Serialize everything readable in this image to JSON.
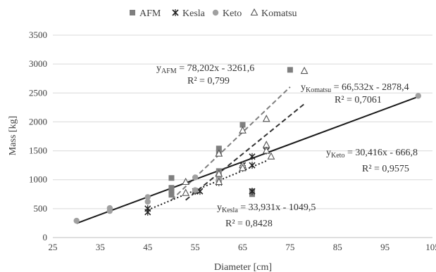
{
  "chart_data": {
    "type": "scatter",
    "xlabel": "Diameter [cm]",
    "ylabel": "Mass [kg]",
    "xlim": [
      25,
      105
    ],
    "ylim": [
      0,
      3500
    ],
    "xticks": [
      25,
      35,
      45,
      55,
      65,
      75,
      85,
      95,
      105
    ],
    "yticks": [
      0,
      500,
      1000,
      1500,
      2000,
      2500,
      3000,
      3500
    ],
    "grid": "horizontal",
    "legend_position": "top",
    "series": [
      {
        "name": "AFM",
        "marker": "square",
        "color": "#7f7f7f",
        "points": [
          [
            50,
            1030
          ],
          [
            50,
            860
          ],
          [
            50,
            800
          ],
          [
            50,
            740
          ],
          [
            55,
            800
          ],
          [
            60,
            1540
          ],
          [
            60,
            1470
          ],
          [
            60,
            1150
          ],
          [
            60,
            1100
          ],
          [
            60,
            1000
          ],
          [
            67,
            800
          ],
          [
            67,
            750
          ],
          [
            65,
            1950
          ],
          [
            75,
            2900
          ]
        ],
        "trendline": {
          "slope": 78.202,
          "intercept": -3261.6,
          "x_range": [
            50,
            75
          ],
          "style": "dashed",
          "color": "#7f7f7f"
        },
        "equation": {
          "y": "y",
          "sub": "AFM",
          "rest": " = 78,202x - 3261,6",
          "r2": "R² = 0,799"
        }
      },
      {
        "name": "Kesla",
        "marker": "star",
        "color": "#222222",
        "points": [
          [
            45,
            500
          ],
          [
            45,
            440
          ],
          [
            55,
            800
          ],
          [
            56,
            800
          ],
          [
            60,
            950
          ],
          [
            65,
            1250
          ],
          [
            65,
            1200
          ],
          [
            67,
            1400
          ],
          [
            67,
            1250
          ],
          [
            67,
            800
          ],
          [
            70,
            1500
          ]
        ],
        "trendline": {
          "slope": 33.931,
          "intercept": -1049.5,
          "x_range": [
            45,
            70
          ],
          "style": "dotted",
          "color": "#222222"
        },
        "equation": {
          "y": "y",
          "sub": "Kesla",
          "rest": " = 33,931x - 1049,5",
          "r2": "R² = 0,8428"
        }
      },
      {
        "name": "Keto",
        "marker": "circle",
        "color": "#a0a0a0",
        "points": [
          [
            30,
            290
          ],
          [
            37,
            510
          ],
          [
            37,
            460
          ],
          [
            45,
            700
          ],
          [
            45,
            620
          ],
          [
            55,
            1040
          ],
          [
            55,
            820
          ],
          [
            60,
            1100
          ],
          [
            60,
            1000
          ],
          [
            102,
            2450
          ]
        ],
        "trendline": {
          "slope": 30.416,
          "intercept": -666.8,
          "x_range": [
            30,
            102
          ],
          "style": "solid",
          "color": "#1a1a1a"
        },
        "equation": {
          "y": "y",
          "sub": "Keto",
          "rest": " = 30,416x - 666,8",
          "r2": "R² = 0,9575"
        }
      },
      {
        "name": "Komatsu",
        "marker": "triangle",
        "color": "#555555",
        "points": [
          [
            53,
            960
          ],
          [
            53,
            770
          ],
          [
            60,
            1450
          ],
          [
            60,
            1100
          ],
          [
            60,
            960
          ],
          [
            65,
            1850
          ],
          [
            65,
            1250
          ],
          [
            65,
            1200
          ],
          [
            70,
            2050
          ],
          [
            70,
            1600
          ],
          [
            70,
            1500
          ],
          [
            71,
            1400
          ],
          [
            78,
            2880
          ]
        ],
        "trendline": {
          "slope": 66.532,
          "intercept": -2878.4,
          "x_range": [
            53,
            78
          ],
          "style": "dashed",
          "color": "#333333"
        },
        "equation": {
          "y": "y",
          "sub": "Komatsu",
          "rest": " = 66,532x - 2878,4",
          "r2": "R² = 0,7061"
        }
      }
    ]
  }
}
